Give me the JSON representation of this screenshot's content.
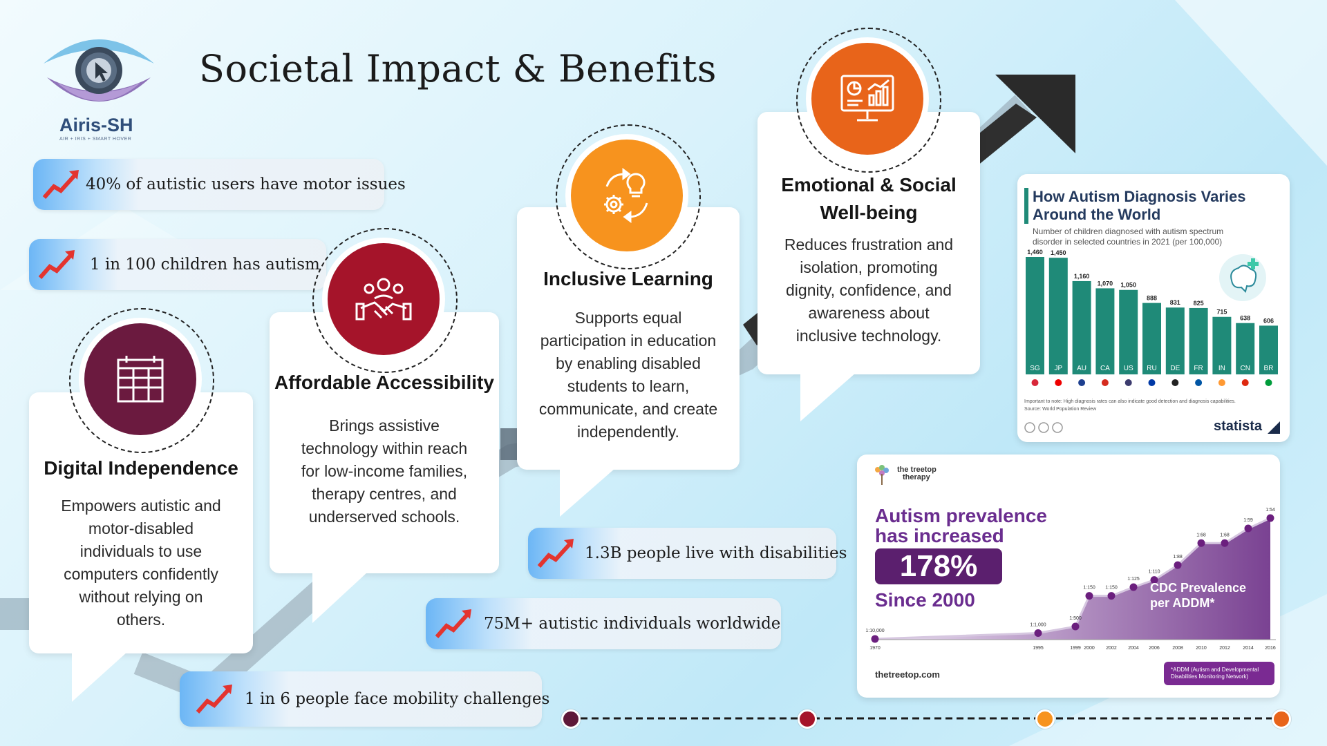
{
  "title": "Societal Impact & Benefits",
  "logo": {
    "name": "Airis-SH",
    "tagline": "AIR + IRIS + SMART HOVER"
  },
  "stats": [
    "40% of autistic users have motor issues",
    "1 in 100 children has autism",
    "1.3B people live with disabilities",
    "75M+ autistic individuals worldwide",
    "1 in 6 people face mobility challenges"
  ],
  "cards": {
    "digital": {
      "title": "Digital Independence",
      "lines": [
        "Empowers autistic and",
        "motor-disabled",
        "individuals to use",
        "computers confidently",
        "without relying on",
        "others."
      ]
    },
    "affordable": {
      "title": "Affordable Accessibility",
      "lines": [
        "Brings assistive",
        "technology within reach",
        "for low-income families,",
        "therapy centres, and",
        "underserved schools."
      ]
    },
    "learning": {
      "title": "Inclusive Learning",
      "lines": [
        "Supports equal",
        "participation in education",
        "by enabling disabled",
        "students to learn,",
        "communicate, and create",
        "independently."
      ]
    },
    "emotional": {
      "title_lines": [
        "Emotional & Social",
        "Well-being"
      ],
      "lines": [
        "Reduces frustration and",
        "isolation, promoting",
        "dignity, confidence, and",
        "awareness about",
        "inclusive technology."
      ]
    }
  },
  "colors": {
    "digital": "#6b1a3f",
    "affordable": "#a5142a",
    "learning": "#f7931e",
    "emotional": "#e8641a",
    "bars": "#1f8a78"
  },
  "statista": {
    "title_lines": [
      "How Autism Diagnosis Varies",
      "Around the World"
    ],
    "subtitle_lines": [
      "Number of children diagnosed with autism spectrum",
      "disorder in selected countries in 2021 (per 100,000)"
    ],
    "note": "Important to note: High diagnosis rates can also indicate good detection and diagnosis capabilities.",
    "source": "Source: World Population Review",
    "brand": "statista"
  },
  "treetop": {
    "brand_lines": [
      "the treetop",
      "therapy"
    ],
    "headline_lines": [
      "Autism prevalence",
      "has increased"
    ],
    "percent": "178%",
    "since": "Since 2000",
    "series_label_lines": [
      "CDC Prevalence",
      "per ADDM*"
    ],
    "footnote_lines": [
      "*ADDM (Autism and Developmental",
      "Disabilities Monitoring Network)"
    ],
    "url": "thetreetop.com"
  },
  "chart_data": [
    {
      "type": "bar",
      "title": "How Autism Diagnosis Varies Around the World",
      "subtitle": "Number of children diagnosed with autism spectrum disorder in selected countries in 2021 (per 100,000)",
      "categories": [
        "SG",
        "JP",
        "AU",
        "CA",
        "US",
        "RU",
        "DE",
        "FR",
        "IN",
        "CN",
        "BR"
      ],
      "values": [
        1460,
        1450,
        1160,
        1070,
        1050,
        888,
        831,
        825,
        715,
        638,
        606
      ],
      "value_labels": [
        "1,460",
        "1,450",
        "1,160",
        "1,070",
        "1,050",
        "888",
        "831",
        "825",
        "715",
        "638",
        "606"
      ],
      "ylim": [
        0,
        1600
      ],
      "grid": false
    },
    {
      "type": "area",
      "categories": [
        "1970",
        "1995",
        "1999",
        "2000",
        "2002",
        "2004",
        "2006",
        "2008",
        "2010",
        "2012",
        "2014",
        "2016"
      ],
      "point_labels": [
        "1:10,000",
        "1:1,000",
        "1:500",
        "1:150",
        "1:150",
        "1:125",
        "1:110",
        "1:88",
        "1:68",
        "1:68",
        "1:59",
        "1:54"
      ],
      "series": [
        {
          "name": "CDC Prevalence per ADDM*",
          "values": [
            1,
            10,
            20,
            66.7,
            66.7,
            80,
            90.9,
            113.6,
            147.1,
            147.1,
            169.5,
            185.2
          ]
        }
      ],
      "ylabel": "",
      "grid": false
    }
  ]
}
